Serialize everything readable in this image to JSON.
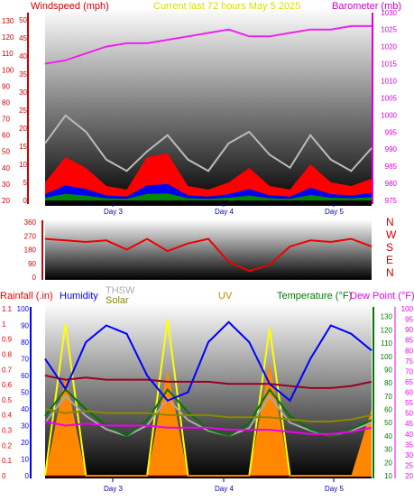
{
  "header": {
    "left": "Windspeed (mph)",
    "center": "Current last 72 hours May 5 2025",
    "right": "Barometer (mb)"
  },
  "colors": {
    "wind_axis": "#cc0000",
    "baro_axis": "#dd00dd",
    "barometer": "#ee22ee",
    "gust": "#bbbbbb",
    "wind": "#ff0000",
    "wind_blue": "#0000ee",
    "wind_green": "#008800",
    "direction": "#ee0000",
    "rain_axis": "#ee0000",
    "humidity": "#0000ff",
    "thsw": "#aaaaaa",
    "solar": "#888800",
    "uv": "#cc8800",
    "temperature": "#007700",
    "dewpoint": "#ee00ee",
    "yellow": "#ffff00",
    "orange": "#ff8800",
    "darkred": "#990022"
  },
  "chart_data": [
    {
      "type": "line",
      "title": "Current last 72 hours May 5 2025",
      "x_ticks": [
        "Day 3",
        "Day 4",
        "Day 5"
      ],
      "left_axis": {
        "label": "Windspeed (mph)",
        "range": [
          20,
          135
        ],
        "ticks_a": [
          20,
          30,
          40,
          50,
          60,
          70,
          80,
          90,
          100,
          110,
          120,
          130
        ],
        "ticks_b": [
          0,
          5,
          10,
          15,
          20,
          25,
          30,
          35,
          40,
          45,
          50
        ]
      },
      "right_axis": {
        "label": "Barometer (mb)",
        "range": [
          975,
          1031
        ],
        "ticks": [
          975,
          980,
          985,
          990,
          995,
          1000,
          1005,
          1010,
          1015,
          1020,
          1025,
          1030
        ]
      },
      "series": [
        {
          "name": "Barometer",
          "values": [
            1015,
            1016,
            1018,
            1020,
            1021,
            1021,
            1022,
            1023,
            1024,
            1025,
            1023,
            1023,
            1024,
            1025,
            1025,
            1026,
            1026
          ]
        },
        {
          "name": "Gust",
          "values": [
            55,
            72,
            62,
            45,
            38,
            50,
            60,
            45,
            38,
            55,
            62,
            48,
            40,
            60,
            45,
            38,
            52
          ]
        },
        {
          "name": "Windspeed",
          "values": [
            5,
            12,
            9,
            4,
            3,
            12,
            13,
            4,
            3,
            5,
            9,
            4,
            3,
            10,
            5,
            4,
            6
          ]
        }
      ]
    },
    {
      "type": "line",
      "left_axis": {
        "ticks": [
          0,
          90,
          180,
          270,
          360
        ]
      },
      "right_labels": [
        "N",
        "W",
        "S",
        "E",
        "N"
      ],
      "series": [
        {
          "name": "Wind direction",
          "values": [
            250,
            240,
            230,
            240,
            180,
            250,
            170,
            220,
            250,
            100,
            40,
            80,
            200,
            240,
            230,
            250,
            200
          ]
        }
      ]
    },
    {
      "type": "line",
      "x_ticks": [
        "Day 3",
        "Day 4",
        "Day 5"
      ],
      "legend": [
        "Rainfall (.in)",
        "Humidity",
        "THSW",
        "Solar",
        "UV",
        "Temperature (°F)",
        "Dew Point (°F)"
      ],
      "axes": {
        "rain": {
          "ticks": [
            0,
            0.1,
            0.2,
            0.3,
            0.4,
            0.5,
            0.6,
            0.7,
            0.8,
            0.9,
            1,
            1.1
          ]
        },
        "humidity": {
          "ticks": [
            0,
            10,
            20,
            30,
            40,
            50,
            60,
            70,
            80,
            90,
            100
          ]
        },
        "temperature": {
          "ticks": [
            10,
            20,
            30,
            40,
            50,
            60,
            70,
            80,
            90,
            100,
            110,
            120,
            130
          ]
        },
        "dewpoint": {
          "ticks": [
            20,
            25,
            30,
            35,
            40,
            45,
            50,
            55,
            60,
            65,
            70,
            75,
            80,
            85,
            90,
            95,
            100
          ]
        }
      },
      "series": [
        {
          "name": "Humidity",
          "values": [
            70,
            52,
            80,
            90,
            85,
            60,
            45,
            50,
            80,
            92,
            80,
            55,
            45,
            70,
            90,
            85,
            75
          ]
        },
        {
          "name": "Temperature",
          "values": [
            55,
            75,
            60,
            48,
            40,
            52,
            75,
            58,
            45,
            40,
            50,
            75,
            55,
            45,
            40,
            45,
            52
          ]
        },
        {
          "name": "Dew Point",
          "values": [
            46,
            44,
            45,
            44,
            44,
            44,
            43,
            43,
            43,
            42,
            42,
            42,
            41,
            40,
            40,
            41,
            43
          ]
        },
        {
          "name": "Solar",
          "values": [
            0,
            70,
            0,
            0,
            0,
            0,
            72,
            0,
            0,
            0,
            0,
            68,
            0,
            0,
            0,
            0,
            0
          ]
        },
        {
          "name": "UV",
          "values": [
            0,
            15,
            0,
            0,
            0,
            0,
            16,
            0,
            0,
            0,
            0,
            17,
            0,
            0,
            0,
            0,
            10
          ]
        },
        {
          "name": "THSW",
          "values": [
            50,
            70,
            55,
            45,
            40,
            48,
            68,
            52,
            44,
            40,
            46,
            70,
            50,
            44,
            40,
            44,
            50
          ]
        },
        {
          "name": "Rainfall",
          "values": [
            0,
            0,
            0,
            0,
            0,
            0,
            0,
            0,
            0,
            0,
            0,
            0,
            0,
            0,
            0,
            0,
            0
          ]
        }
      ]
    }
  ]
}
